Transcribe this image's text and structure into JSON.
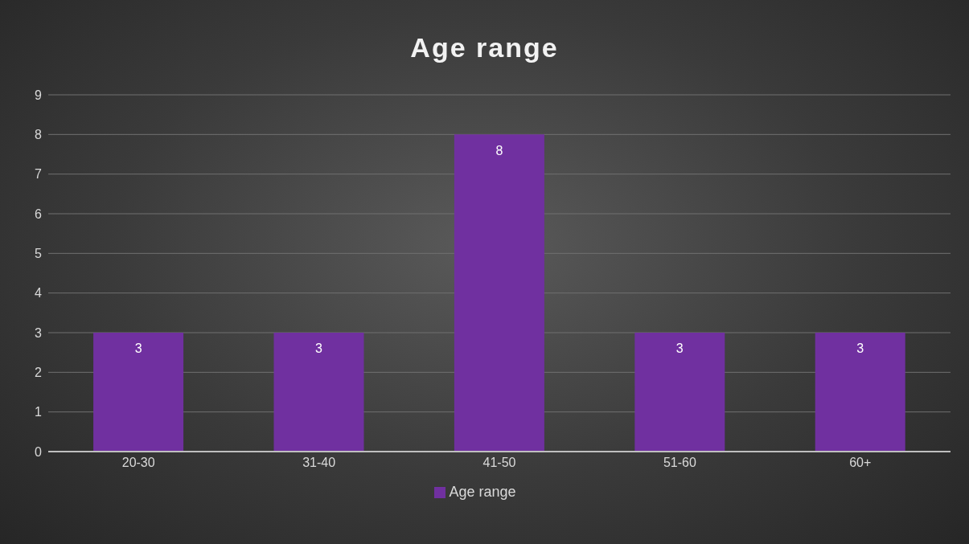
{
  "chart_data": {
    "type": "bar",
    "title": "Age range",
    "categories": [
      "20-30",
      "31-40",
      "41-50",
      "51-60",
      "60+"
    ],
    "series": [
      {
        "name": "Age range",
        "color": "#7030a0",
        "values": [
          3,
          3,
          8,
          3,
          3
        ]
      }
    ],
    "ylim": [
      0,
      9
    ],
    "yticks": [
      0,
      1,
      2,
      3,
      4,
      5,
      6,
      7,
      8,
      9
    ],
    "grid": "y",
    "legend": "bottom",
    "data_labels": true
  }
}
